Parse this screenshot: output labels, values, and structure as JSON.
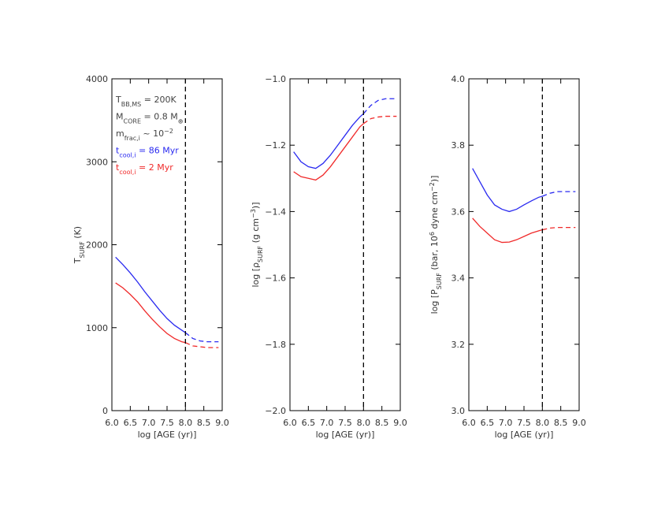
{
  "chart_data": [
    {
      "type": "line",
      "xlabel": "log [AGE (yr)]",
      "ylabel": [
        "T",
        {
          "text": "SURF",
          "shift": "sub"
        },
        " (K)"
      ],
      "x": [
        6.1,
        6.3,
        6.5,
        6.7,
        6.9,
        7.1,
        7.3,
        7.5,
        7.7,
        7.9,
        8.0,
        8.2,
        8.4,
        8.6,
        8.8,
        8.9
      ],
      "series": [
        {
          "color": "#2a2af0",
          "linestyle": "solid",
          "values": [
            1850,
            1760,
            1660,
            1550,
            1430,
            1320,
            1210,
            1110,
            1030,
            970,
            940,
            null,
            null,
            null,
            null,
            null
          ]
        },
        {
          "color": "#2a2af0",
          "linestyle": "dashed",
          "values": [
            null,
            null,
            null,
            null,
            null,
            null,
            null,
            null,
            null,
            null,
            940,
            870,
            840,
            830,
            830,
            830
          ]
        },
        {
          "color": "#f02a2a",
          "linestyle": "solid",
          "values": [
            1540,
            1480,
            1400,
            1310,
            1200,
            1100,
            1010,
            930,
            870,
            830,
            820,
            null,
            null,
            null,
            null,
            null
          ]
        },
        {
          "color": "#f02a2a",
          "linestyle": "dashed",
          "values": [
            null,
            null,
            null,
            null,
            null,
            null,
            null,
            null,
            null,
            null,
            820,
            780,
            770,
            760,
            760,
            760
          ]
        }
      ],
      "xlim": [
        6,
        9
      ],
      "ylim": [
        0,
        4000
      ],
      "xticks": [
        {
          "value": 6,
          "label": "6.0"
        },
        6.5,
        {
          "value": 7,
          "label": "7.0"
        },
        7.5,
        {
          "value": 8,
          "label": "8.0"
        },
        8.5,
        {
          "value": 9,
          "label": "9.0"
        }
      ],
      "yticks": [
        0,
        1000,
        2000,
        3000,
        4000
      ],
      "vline": 8,
      "annotations": [
        {
          "text": [
            "T",
            {
              "text": "BB,MS",
              "shift": "sub"
            },
            " = 200K"
          ],
          "color": "#444444"
        },
        {
          "text": [
            "M",
            {
              "text": "CORE",
              "shift": "sub"
            },
            " = 0.8 M",
            {
              "text": "⊕",
              "shift": "sub"
            }
          ],
          "color": "#444444"
        },
        {
          "text": [
            "m",
            {
              "text": "frac,i",
              "shift": "sub"
            },
            " ~ 10",
            {
              "text": "−2",
              "shift": "super"
            }
          ],
          "color": "#444444"
        },
        {
          "text": [
            "t",
            {
              "text": "cool,i",
              "shift": "sub"
            },
            " = 86 Myr"
          ],
          "color": "#2a2af0"
        },
        {
          "text": [
            "t",
            {
              "text": "cool,i",
              "shift": "sub"
            },
            " = 2 Myr"
          ],
          "color": "#f02a2a"
        }
      ]
    },
    {
      "type": "line",
      "xlabel": "log [AGE (yr)]",
      "ylabel": [
        "log [ρ",
        {
          "text": "SURF",
          "shift": "sub"
        },
        " (g cm",
        {
          "text": "−3",
          "shift": "super"
        },
        ")]"
      ],
      "x": [
        6.1,
        6.3,
        6.5,
        6.7,
        6.9,
        7.1,
        7.3,
        7.5,
        7.7,
        7.9,
        8.0,
        8.2,
        8.4,
        8.6,
        8.8,
        8.9
      ],
      "series": [
        {
          "color": "#2a2af0",
          "linestyle": "solid",
          "values": [
            -1.22,
            -1.25,
            -1.265,
            -1.27,
            -1.255,
            -1.23,
            -1.2,
            -1.17,
            -1.14,
            -1.115,
            -1.105,
            null,
            null,
            null,
            null,
            null
          ]
        },
        {
          "color": "#2a2af0",
          "linestyle": "dashed",
          "values": [
            null,
            null,
            null,
            null,
            null,
            null,
            null,
            null,
            null,
            null,
            -1.105,
            -1.08,
            -1.065,
            -1.06,
            -1.06,
            -1.06
          ]
        },
        {
          "color": "#f02a2a",
          "linestyle": "solid",
          "values": [
            -1.28,
            -1.295,
            -1.3,
            -1.305,
            -1.29,
            -1.265,
            -1.235,
            -1.205,
            -1.175,
            -1.145,
            -1.135,
            null,
            null,
            null,
            null,
            null
          ]
        },
        {
          "color": "#f02a2a",
          "linestyle": "dashed",
          "values": [
            null,
            null,
            null,
            null,
            null,
            null,
            null,
            null,
            null,
            null,
            -1.135,
            -1.12,
            -1.115,
            -1.113,
            -1.113,
            -1.113
          ]
        }
      ],
      "xlim": [
        6,
        9
      ],
      "ylim": [
        -2,
        -1
      ],
      "xticks": [
        {
          "value": 6,
          "label": "6.0"
        },
        6.5,
        {
          "value": 7,
          "label": "7.0"
        },
        7.5,
        {
          "value": 8,
          "label": "8.0"
        },
        8.5,
        {
          "value": 9,
          "label": "9.0"
        }
      ],
      "yticks": [
        {
          "value": -2,
          "label": "−2.0"
        },
        {
          "value": -1.8,
          "label": "−1.8"
        },
        {
          "value": -1.6,
          "label": "−1.6"
        },
        {
          "value": -1.4,
          "label": "−1.4"
        },
        {
          "value": -1.2,
          "label": "−1.2"
        },
        {
          "value": -1,
          "label": "−1.0"
        }
      ],
      "vline": 8
    },
    {
      "type": "line",
      "xlabel": "log [AGE (yr)]",
      "ylabel": [
        "log [P",
        {
          "text": "SURF",
          "shift": "sub"
        },
        " (bar, 10",
        {
          "text": "6",
          "shift": "super"
        },
        " dyne cm",
        {
          "text": "−2",
          "shift": "super"
        },
        ")]"
      ],
      "x": [
        6.1,
        6.3,
        6.5,
        6.7,
        6.9,
        7.1,
        7.3,
        7.5,
        7.7,
        7.9,
        8.0,
        8.2,
        8.4,
        8.6,
        8.8,
        8.9
      ],
      "series": [
        {
          "color": "#2a2af0",
          "linestyle": "solid",
          "values": [
            3.73,
            3.69,
            3.65,
            3.62,
            3.607,
            3.6,
            3.607,
            3.62,
            3.632,
            3.643,
            3.646,
            null,
            null,
            null,
            null,
            null
          ]
        },
        {
          "color": "#2a2af0",
          "linestyle": "dashed",
          "values": [
            null,
            null,
            null,
            null,
            null,
            null,
            null,
            null,
            null,
            null,
            3.646,
            3.655,
            3.66,
            3.66,
            3.66,
            3.66
          ]
        },
        {
          "color": "#f02a2a",
          "linestyle": "solid",
          "values": [
            3.58,
            3.555,
            3.535,
            3.515,
            3.507,
            3.508,
            3.515,
            3.525,
            3.535,
            3.542,
            3.545,
            null,
            null,
            null,
            null,
            null
          ]
        },
        {
          "color": "#f02a2a",
          "linestyle": "dashed",
          "values": [
            null,
            null,
            null,
            null,
            null,
            null,
            null,
            null,
            null,
            null,
            3.545,
            3.55,
            3.552,
            3.552,
            3.552,
            3.552
          ]
        }
      ],
      "xlim": [
        6,
        9
      ],
      "ylim": [
        3,
        4
      ],
      "xticks": [
        {
          "value": 6,
          "label": "6.0"
        },
        6.5,
        {
          "value": 7,
          "label": "7.0"
        },
        7.5,
        {
          "value": 8,
          "label": "8.0"
        },
        8.5,
        {
          "value": 9,
          "label": "9.0"
        }
      ],
      "yticks": [
        {
          "value": 3,
          "label": "3.0"
        },
        3.2,
        3.4,
        3.6,
        3.8,
        {
          "value": 4,
          "label": "4.0"
        }
      ],
      "vline": 8
    }
  ]
}
